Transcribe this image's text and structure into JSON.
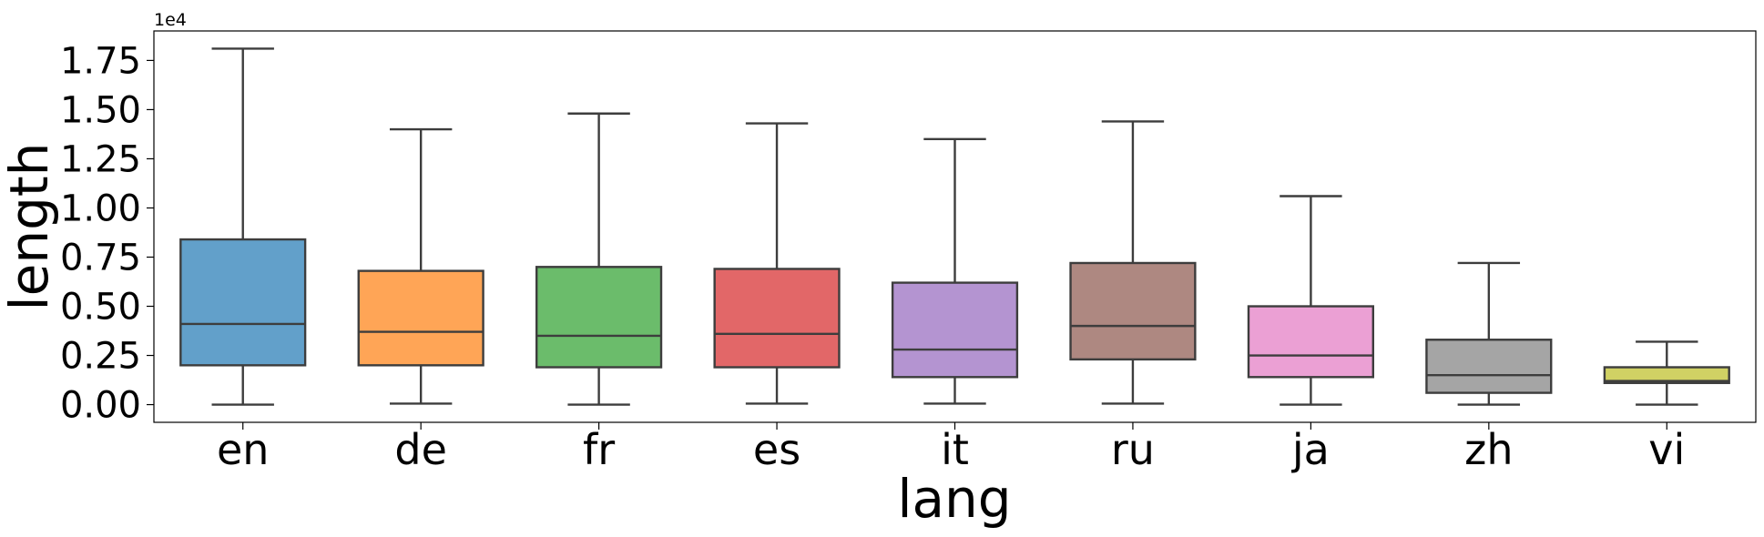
{
  "chart_data": {
    "type": "box",
    "xlabel": "lang",
    "ylabel": "length",
    "offset_text": "1e4",
    "ylim": [
      -0.09,
      1.9
    ],
    "yticks": [
      0.0,
      0.25,
      0.5,
      0.75,
      1.0,
      1.25,
      1.5,
      1.75
    ],
    "ytick_labels": [
      "0.00",
      "0.25",
      "0.50",
      "0.75",
      "1.00",
      "1.25",
      "1.50",
      "1.75"
    ],
    "categories": [
      "en",
      "de",
      "fr",
      "es",
      "it",
      "ru",
      "ja",
      "zh",
      "vi"
    ],
    "colors": [
      "#1f77b4",
      "#ff7f0e",
      "#2ca02c",
      "#d62728",
      "#9467bd",
      "#8c564b",
      "#e377c2",
      "#7f7f7f",
      "#bcbd22"
    ],
    "boxes": [
      {
        "whislo": 0.0,
        "q1": 0.2,
        "med": 0.41,
        "q3": 0.84,
        "whishi": 1.81
      },
      {
        "whislo": 0.005,
        "q1": 0.2,
        "med": 0.37,
        "q3": 0.68,
        "whishi": 1.4
      },
      {
        "whislo": 0.0,
        "q1": 0.19,
        "med": 0.35,
        "q3": 0.7,
        "whishi": 1.48
      },
      {
        "whislo": 0.005,
        "q1": 0.19,
        "med": 0.36,
        "q3": 0.69,
        "whishi": 1.43
      },
      {
        "whislo": 0.005,
        "q1": 0.14,
        "med": 0.28,
        "q3": 0.62,
        "whishi": 1.35
      },
      {
        "whislo": 0.005,
        "q1": 0.23,
        "med": 0.4,
        "q3": 0.72,
        "whishi": 1.44
      },
      {
        "whislo": 0.0,
        "q1": 0.14,
        "med": 0.25,
        "q3": 0.5,
        "whishi": 1.06
      },
      {
        "whislo": 0.0,
        "q1": 0.06,
        "med": 0.15,
        "q3": 0.33,
        "whishi": 0.72
      },
      {
        "whislo": 0.0,
        "q1": 0.11,
        "med": 0.12,
        "q3": 0.19,
        "whishi": 0.32
      }
    ]
  }
}
